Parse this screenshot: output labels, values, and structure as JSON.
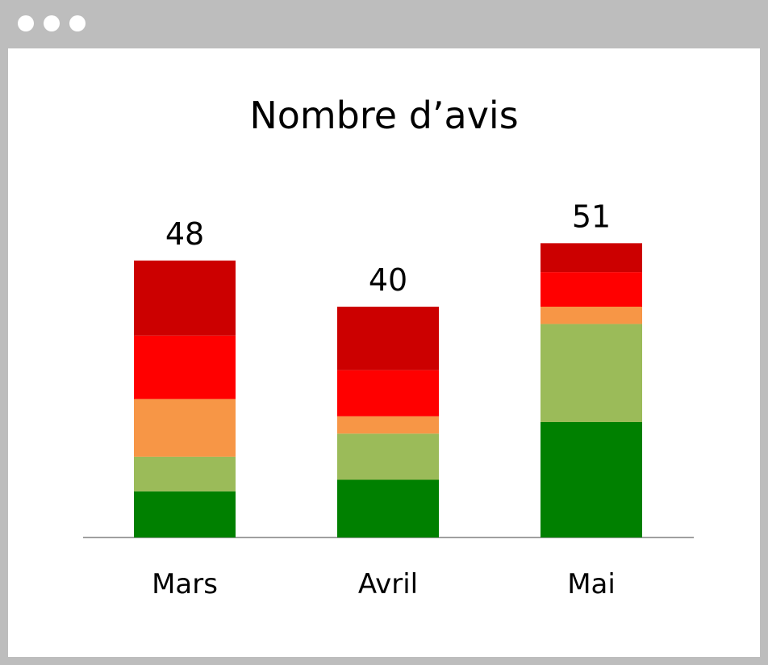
{
  "window": {
    "controls": [
      "window-dot-icon",
      "window-dot-icon",
      "window-dot-icon"
    ],
    "frame_color": "#bdbdbd"
  },
  "chart_data": {
    "type": "bar",
    "stacked": true,
    "title": "Nombre d’avis",
    "xlabel": "",
    "ylabel": "",
    "categories": [
      "Mars",
      "Avril",
      "Mai"
    ],
    "totals": [
      48,
      40,
      51
    ],
    "ylim": [
      0,
      55
    ],
    "grid": false,
    "legend": "none",
    "series": [
      {
        "color": "#008000",
        "values": [
          8,
          10,
          20
        ]
      },
      {
        "color": "#9bbb59",
        "values": [
          6,
          8,
          17
        ]
      },
      {
        "color": "#f79646",
        "values": [
          10,
          3,
          3
        ]
      },
      {
        "color": "#ff0000",
        "values": [
          11,
          8,
          6
        ]
      },
      {
        "color": "#cc0000",
        "values": [
          13,
          11,
          5
        ]
      }
    ]
  }
}
